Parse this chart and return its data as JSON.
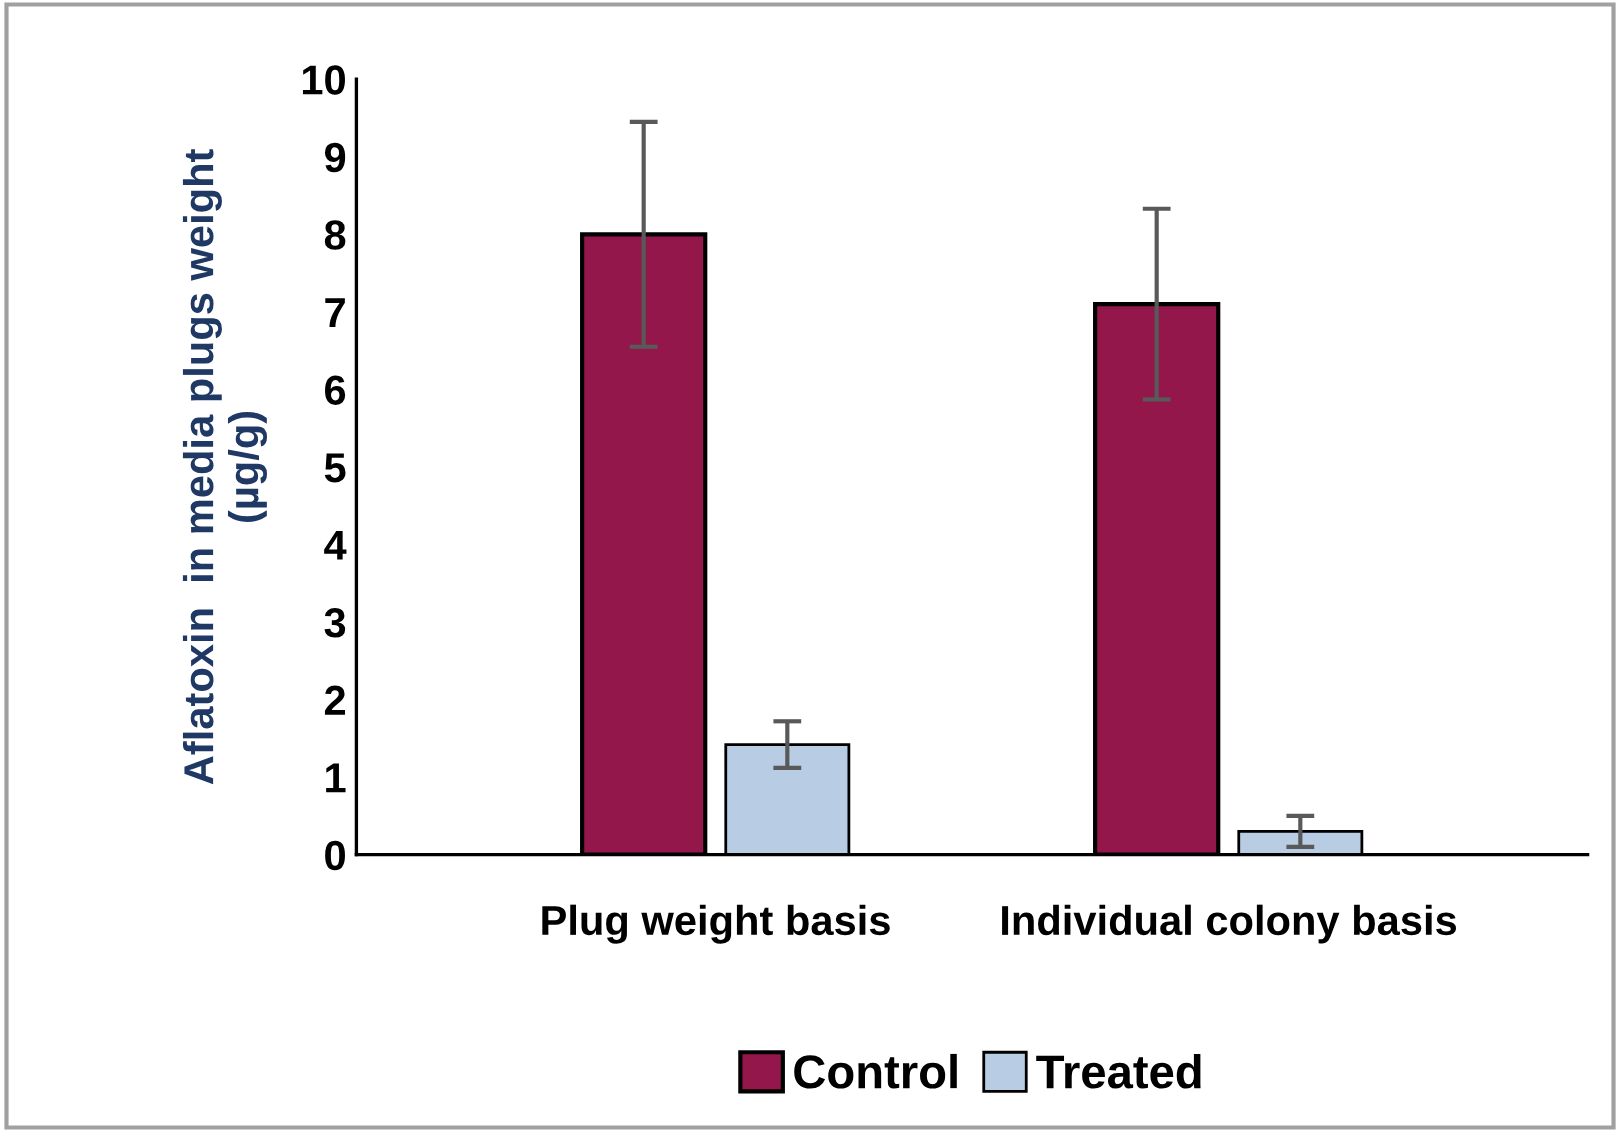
{
  "chart_data": {
    "type": "bar",
    "ylabel": "Aflatoxin  in media plugs weight\n(µg/g)",
    "categories": [
      "Plug weight basis",
      "Individual colony basis"
    ],
    "series": [
      {
        "name": "Control",
        "color": "#93174b",
        "values": [
          8.0,
          7.1
        ],
        "errors": [
          1.45,
          1.23
        ]
      },
      {
        "name": "Treated",
        "color": "#b8cce4",
        "values": [
          1.42,
          0.3
        ],
        "errors": [
          0.3,
          0.2
        ]
      }
    ],
    "ylim": [
      0,
      10
    ],
    "yticks": [
      0,
      1,
      2,
      3,
      4,
      5,
      6,
      7,
      8,
      9,
      10
    ],
    "grid": false,
    "legend": "bottom"
  }
}
